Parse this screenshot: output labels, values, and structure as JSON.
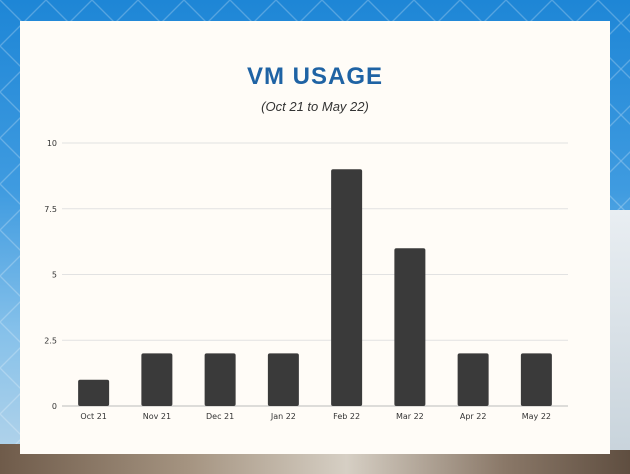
{
  "chart_data": {
    "type": "bar",
    "title": "VM USAGE",
    "subtitle": "(Oct 21 to  May 22)",
    "categories": [
      "Oct 21",
      "Nov 21",
      "Dec 21",
      "Jan 22",
      "Feb 22",
      "Mar 22",
      "Apr 22",
      "May 22"
    ],
    "values": [
      1,
      2,
      2,
      2,
      9,
      6,
      2,
      2
    ],
    "ylim": [
      0,
      10
    ],
    "yticks": [
      0,
      2.5,
      5,
      7.5,
      10
    ],
    "ytick_labels": [
      "0",
      "2.5",
      "5",
      "7.5",
      "10"
    ],
    "grid": true,
    "legend": "none",
    "bar_color": "#3a3a3a",
    "title_color": "#1f63a4"
  }
}
